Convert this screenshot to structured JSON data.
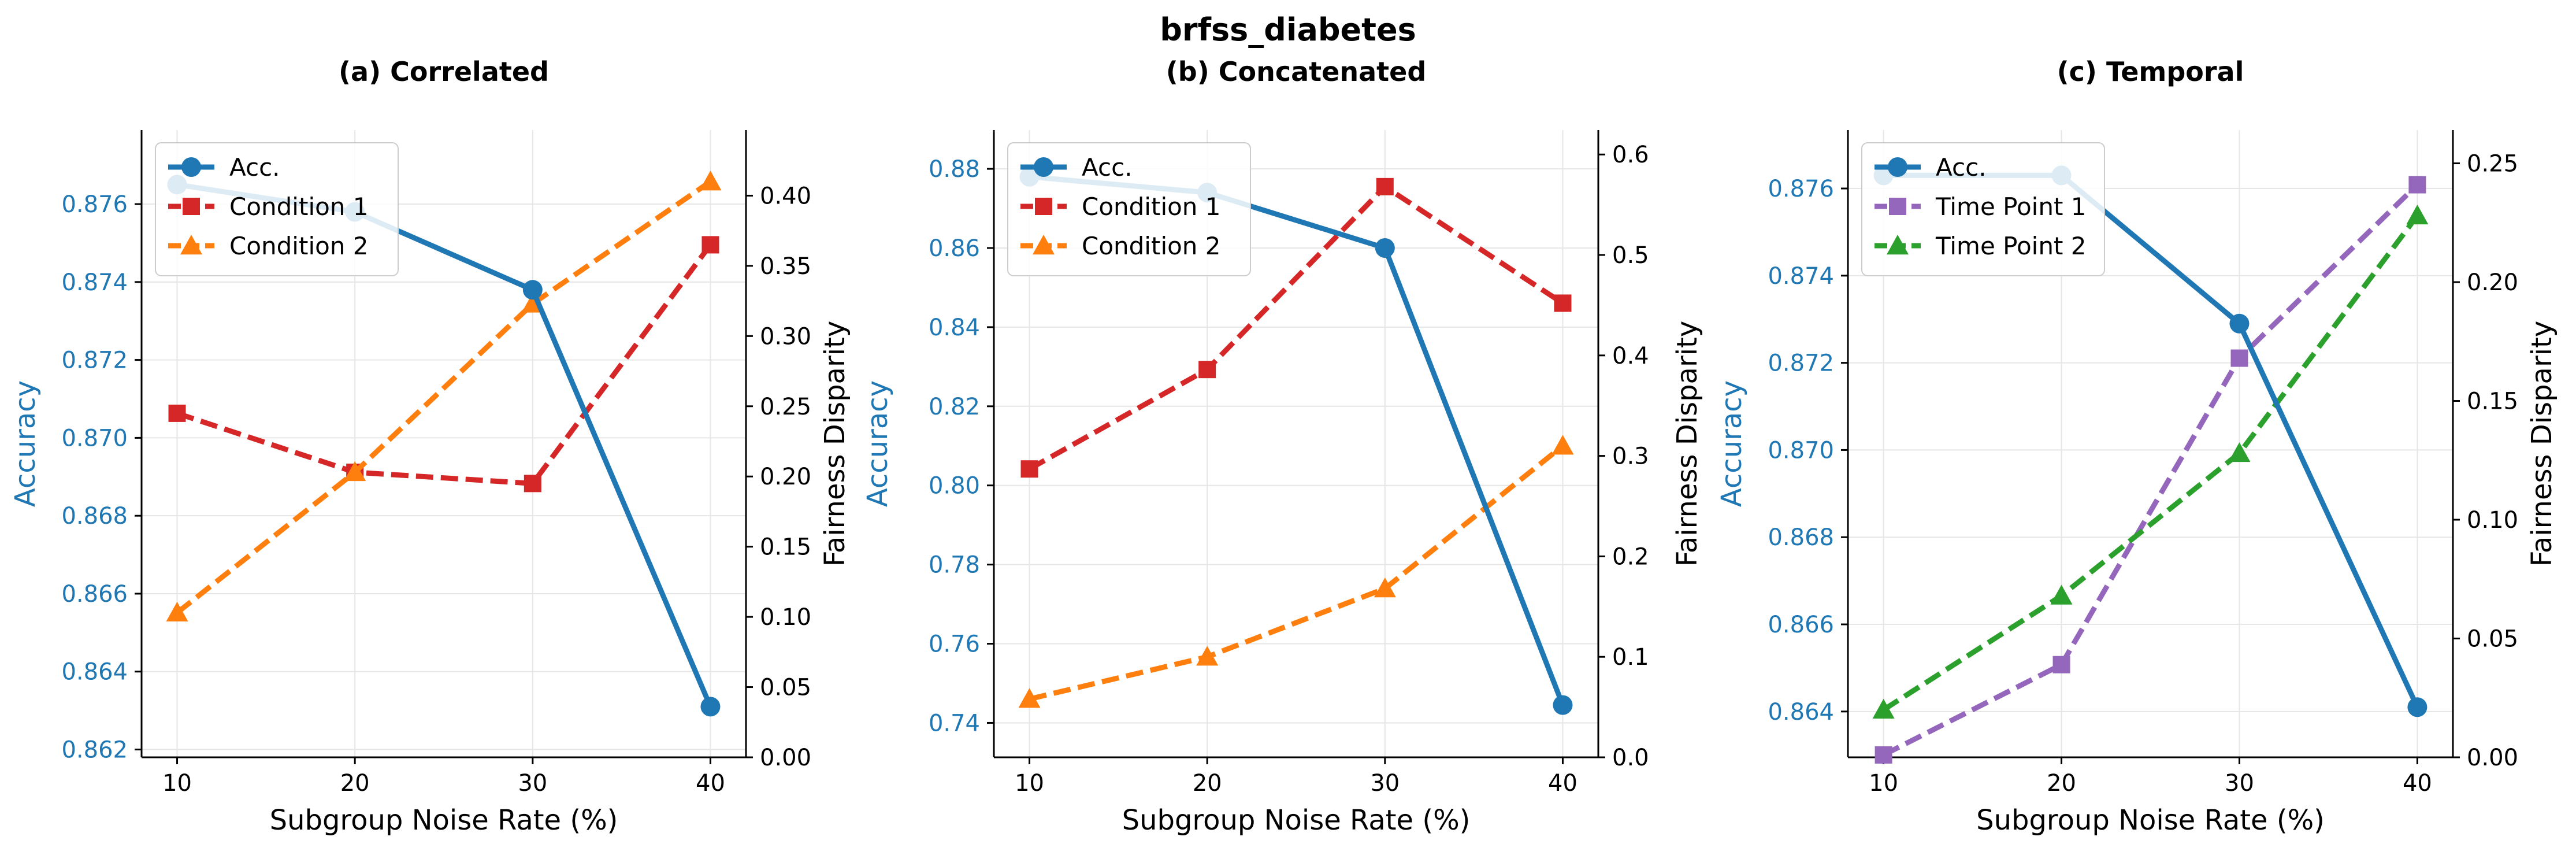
{
  "figure": {
    "title": "brfss_diabetes"
  },
  "colors": {
    "accuracy": "#1f77b4",
    "red": "#d62728",
    "orange": "#ff7f0e",
    "purple": "#9467bd",
    "green": "#2ca02c",
    "axis": "#000000",
    "grid": "#e6e6e6"
  },
  "chart_data": [
    {
      "type": "line",
      "title": "(a) Correlated",
      "xlabel": "Subgroup Noise Rate (%)",
      "ylabel": "Accuracy",
      "y2label": "Fairness Disparity",
      "x": [
        10,
        20,
        30,
        40
      ],
      "xlim": [
        8,
        42
      ],
      "xticks": [
        "10",
        "20",
        "30",
        "40"
      ],
      "ylim": [
        0.8618,
        0.8779
      ],
      "yticks": [
        "0.862",
        "0.864",
        "0.866",
        "0.868",
        "0.870",
        "0.872",
        "0.874",
        "0.876"
      ],
      "y2lim": [
        0.0,
        0.4467
      ],
      "y2ticks": [
        "0.00",
        "0.05",
        "0.10",
        "0.15",
        "0.20",
        "0.25",
        "0.30",
        "0.35",
        "0.40"
      ],
      "grid": true,
      "legend_position": "upper-left",
      "series": [
        {
          "name": "Acc.",
          "axis": "left",
          "values": [
            0.8765,
            0.8758,
            0.8738,
            0.8631
          ],
          "color": "#1f77b4",
          "marker": "circle",
          "dash": "solid"
        },
        {
          "name": "Condition 1",
          "axis": "right",
          "values": [
            0.245,
            0.203,
            0.195,
            0.365
          ],
          "color": "#d62728",
          "marker": "square",
          "dash": "dashed"
        },
        {
          "name": "Condition 2",
          "axis": "right",
          "values": [
            0.103,
            0.203,
            0.323,
            0.41
          ],
          "color": "#ff7f0e",
          "marker": "triangle",
          "dash": "dashed"
        }
      ]
    },
    {
      "type": "line",
      "title": "(b) Concatenated",
      "xlabel": "Subgroup Noise Rate (%)",
      "ylabel": "Accuracy",
      "y2label": "Fairness Disparity",
      "x": [
        10,
        20,
        30,
        40
      ],
      "xlim": [
        8,
        42
      ],
      "xticks": [
        "10",
        "20",
        "30",
        "40"
      ],
      "ylim": [
        0.7313,
        0.8898
      ],
      "yticks": [
        "0.74",
        "0.76",
        "0.78",
        "0.80",
        "0.82",
        "0.84",
        "0.86",
        "0.88"
      ],
      "y2lim": [
        0.0,
        0.6243
      ],
      "y2ticks": [
        "0.0",
        "0.1",
        "0.2",
        "0.3",
        "0.4",
        "0.5",
        "0.6"
      ],
      "grid": true,
      "legend_position": "upper-left",
      "series": [
        {
          "name": "Acc.",
          "axis": "left",
          "values": [
            0.878,
            0.874,
            0.86,
            0.7445
          ],
          "color": "#1f77b4",
          "marker": "circle",
          "dash": "solid"
        },
        {
          "name": "Condition 1",
          "axis": "right",
          "values": [
            0.287,
            0.386,
            0.568,
            0.452
          ],
          "color": "#d62728",
          "marker": "square",
          "dash": "dashed"
        },
        {
          "name": "Condition 2",
          "axis": "right",
          "values": [
            0.058,
            0.1,
            0.168,
            0.31
          ],
          "color": "#ff7f0e",
          "marker": "triangle",
          "dash": "dashed"
        }
      ]
    },
    {
      "type": "line",
      "title": "(c) Temporal",
      "xlabel": "Subgroup Noise Rate (%)",
      "ylabel": "Accuracy",
      "y2label": "Fairness Disparity",
      "x": [
        10,
        20,
        30,
        40
      ],
      "xlim": [
        8,
        42
      ],
      "xticks": [
        "10",
        "20",
        "30",
        "40"
      ],
      "ylim": [
        0.86295,
        0.87734
      ],
      "yticks": [
        "0.864",
        "0.866",
        "0.868",
        "0.870",
        "0.872",
        "0.874",
        "0.876"
      ],
      "y2lim": [
        0.0,
        0.264
      ],
      "y2ticks": [
        "0.00",
        "0.05",
        "0.10",
        "0.15",
        "0.20",
        "0.25"
      ],
      "grid": true,
      "legend_position": "upper-left",
      "series": [
        {
          "name": "Acc.",
          "axis": "left",
          "values": [
            0.8763,
            0.8763,
            0.8729,
            0.8641
          ],
          "color": "#1f77b4",
          "marker": "circle",
          "dash": "solid"
        },
        {
          "name": "Time Point 1",
          "axis": "right",
          "values": [
            0.001,
            0.039,
            0.168,
            0.241
          ],
          "color": "#9467bd",
          "marker": "square",
          "dash": "dashed"
        },
        {
          "name": "Time Point 2",
          "axis": "right",
          "values": [
            0.02,
            0.068,
            0.128,
            0.228
          ],
          "color": "#2ca02c",
          "marker": "triangle",
          "dash": "dashed"
        }
      ]
    }
  ]
}
